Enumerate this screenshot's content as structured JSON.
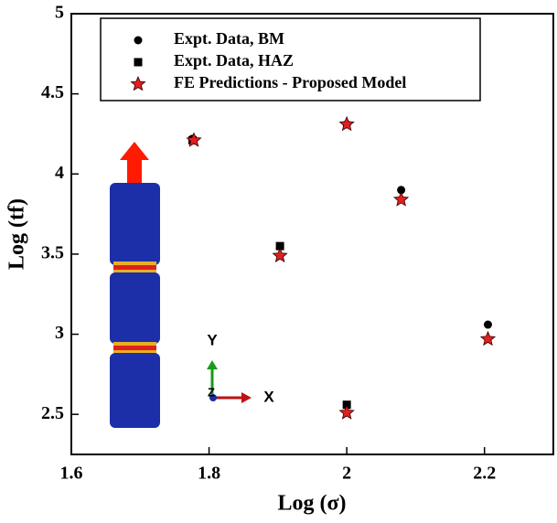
{
  "chart_data": {
    "type": "scatter",
    "xlabel": "Log (σ)",
    "ylabel": "Log (tf)",
    "xlim": [
      1.6,
      2.3
    ],
    "ylim": [
      2.25,
      5
    ],
    "xticks": [
      1.6,
      1.8,
      2,
      2.2
    ],
    "yticks": [
      2.5,
      3,
      3.5,
      4,
      4.5,
      5
    ],
    "legend_position": "top",
    "inset_labels": [
      "Y",
      "X",
      "Z"
    ],
    "series": [
      {
        "name": "Expt. Data, BM",
        "marker": "circle",
        "color": "#000000",
        "x": [
          1.776,
          2.0,
          2.079,
          2.205
        ],
        "values": [
          4.22,
          4.31,
          3.9,
          3.06
        ]
      },
      {
        "name": "Expt. Data, HAZ",
        "marker": "square",
        "color": "#000000",
        "x": [
          1.776,
          1.903,
          2.0
        ],
        "values": [
          4.21,
          3.55,
          2.56
        ]
      },
      {
        "name": "FE Predictions - Proposed Model",
        "marker": "star",
        "color": "#e02020",
        "x": [
          1.778,
          1.903,
          2.0,
          2.0,
          2.079,
          2.205
        ],
        "values": [
          4.21,
          3.49,
          4.31,
          2.51,
          3.84,
          2.97
        ]
      }
    ]
  }
}
